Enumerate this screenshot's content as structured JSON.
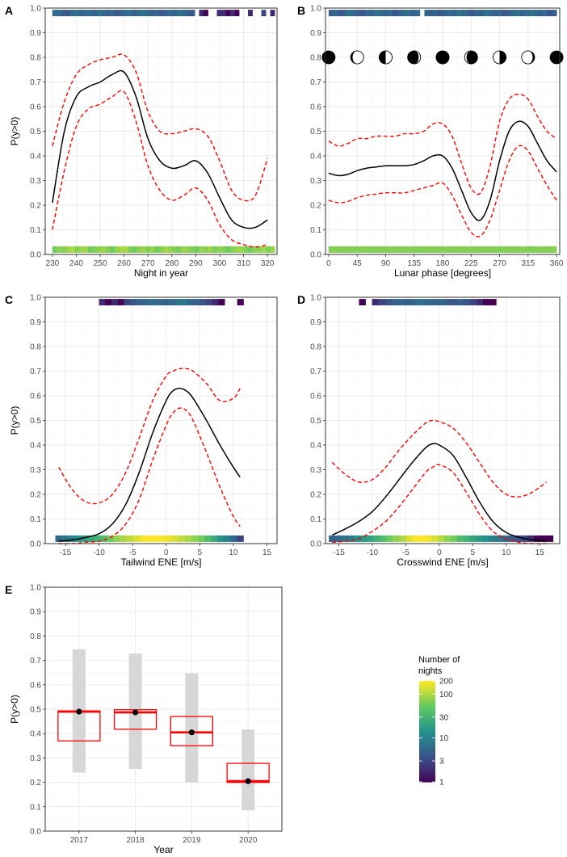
{
  "colors": {
    "mean": "#000000",
    "ci": "#ff0000",
    "grid_major": "#ebebeb",
    "grid_minor": "#f5f5f5",
    "panel_border": "#333333",
    "box_fill": "#d3d3d3",
    "viridis": [
      "#440154",
      "#3b528b",
      "#21918c",
      "#5ec962",
      "#fde725"
    ]
  },
  "legend": {
    "title_line1": "Number of",
    "title_line2": "nights",
    "labels": [
      "200",
      "100",
      "30",
      "10",
      "3",
      "1"
    ],
    "values": [
      200,
      100,
      30,
      10,
      3,
      1
    ]
  },
  "chart_data": [
    {
      "panel_label": "A",
      "type": "line",
      "xlabel": "Night in year",
      "ylabel": "P(y>0)",
      "xlim": [
        227,
        324
      ],
      "ylim": [
        0,
        1
      ],
      "xticks": [
        230,
        240,
        250,
        260,
        270,
        280,
        290,
        300,
        310,
        320
      ],
      "yticks": [
        0,
        0.1,
        0.2,
        0.3,
        0.4,
        0.5,
        0.6,
        0.7,
        0.8,
        0.9,
        1.0
      ],
      "ytick_labels": [
        "0.0",
        "0.1",
        "0.2",
        "0.3",
        "0.4",
        "0.5",
        "0.6",
        "0.7",
        "0.8",
        "0.9",
        "1.0"
      ],
      "x": [
        230,
        235,
        240,
        245,
        250,
        255,
        260,
        265,
        270,
        275,
        280,
        285,
        290,
        295,
        300,
        305,
        310,
        315,
        320
      ],
      "mean": [
        0.21,
        0.5,
        0.64,
        0.68,
        0.7,
        0.73,
        0.74,
        0.64,
        0.47,
        0.38,
        0.35,
        0.36,
        0.38,
        0.33,
        0.23,
        0.14,
        0.11,
        0.11,
        0.14
      ],
      "upper": [
        0.44,
        0.62,
        0.73,
        0.77,
        0.79,
        0.8,
        0.81,
        0.74,
        0.58,
        0.5,
        0.49,
        0.5,
        0.51,
        0.48,
        0.38,
        0.26,
        0.22,
        0.24,
        0.39
      ],
      "lower": [
        0.1,
        0.34,
        0.52,
        0.59,
        0.61,
        0.64,
        0.66,
        0.54,
        0.36,
        0.26,
        0.22,
        0.24,
        0.27,
        0.22,
        0.12,
        0.06,
        0.04,
        0.03,
        0.04
      ],
      "rug_top": {
        "x_start": 230,
        "x_end": 323,
        "counts": [
          6,
          6,
          5,
          4,
          6,
          7,
          5,
          6,
          6,
          5,
          7,
          6,
          5,
          6,
          4,
          5,
          6,
          7,
          5,
          6,
          7,
          6,
          5,
          6,
          4,
          5,
          6,
          5,
          7,
          6,
          5,
          4,
          0,
          2,
          1,
          0,
          0,
          2,
          2,
          1,
          2,
          1,
          0,
          0,
          2,
          0,
          0,
          3,
          0,
          2
        ]
      },
      "rug_bottom": {
        "x_start": 230,
        "x_end": 323,
        "counts": [
          60,
          80,
          70,
          90,
          100,
          75,
          85,
          95,
          60,
          70,
          80,
          90,
          70,
          60,
          85,
          95,
          100,
          70,
          60,
          80,
          90,
          70,
          85,
          60,
          75,
          95,
          80,
          70,
          65,
          90,
          80,
          70,
          60,
          85,
          75,
          90,
          65,
          80,
          70,
          60,
          75,
          85,
          90,
          70,
          60,
          80,
          75,
          90,
          70,
          85
        ]
      }
    },
    {
      "panel_label": "B",
      "type": "line",
      "xlabel": "Lunar phase [degrees]",
      "ylabel": "",
      "xlim": [
        -5,
        365
      ],
      "ylim": [
        0,
        1
      ],
      "xticks": [
        0,
        45,
        90,
        135,
        180,
        225,
        270,
        315,
        360
      ],
      "yticks": [
        0,
        0.1,
        0.2,
        0.3,
        0.4,
        0.5,
        0.6,
        0.7,
        0.8,
        0.9,
        1.0
      ],
      "ytick_labels": [
        "0.0",
        "0.1",
        "0.2",
        "0.3",
        "0.4",
        "0.5",
        "0.6",
        "0.7",
        "0.8",
        "0.9",
        "1.0"
      ],
      "x": [
        0,
        15,
        30,
        45,
        60,
        75,
        90,
        105,
        120,
        135,
        150,
        165,
        180,
        195,
        210,
        225,
        240,
        255,
        270,
        285,
        300,
        315,
        330,
        345,
        360
      ],
      "mean": [
        0.33,
        0.32,
        0.325,
        0.34,
        0.35,
        0.355,
        0.36,
        0.36,
        0.36,
        0.365,
        0.38,
        0.4,
        0.4,
        0.35,
        0.26,
        0.17,
        0.14,
        0.22,
        0.38,
        0.5,
        0.54,
        0.52,
        0.45,
        0.38,
        0.335
      ],
      "upper": [
        0.46,
        0.44,
        0.45,
        0.47,
        0.47,
        0.48,
        0.48,
        0.48,
        0.49,
        0.49,
        0.5,
        0.53,
        0.53,
        0.48,
        0.37,
        0.27,
        0.25,
        0.36,
        0.54,
        0.63,
        0.65,
        0.63,
        0.56,
        0.5,
        0.47
      ],
      "lower": [
        0.22,
        0.21,
        0.215,
        0.23,
        0.24,
        0.245,
        0.25,
        0.25,
        0.25,
        0.26,
        0.27,
        0.28,
        0.29,
        0.24,
        0.16,
        0.09,
        0.075,
        0.14,
        0.26,
        0.38,
        0.44,
        0.42,
        0.35,
        0.28,
        0.22
      ],
      "moon_phases_at": [
        0,
        45,
        90,
        135,
        180,
        225,
        270,
        315,
        360
      ],
      "moon_y": 0.8,
      "rug_top": {
        "x_start": 0,
        "x_end": 360,
        "counts": [
          5,
          6,
          4,
          5,
          7,
          6,
          5,
          4,
          6,
          5,
          7,
          6,
          5,
          6,
          4,
          5,
          6,
          7,
          5,
          6,
          0,
          6,
          5,
          6,
          4,
          5,
          6,
          5,
          7,
          6,
          5,
          4,
          6,
          5,
          7,
          6,
          5,
          6,
          4,
          5,
          6,
          7,
          5,
          6,
          7,
          6,
          5,
          6,
          4,
          5
        ]
      },
      "rug_bottom": {
        "x_start": 0,
        "x_end": 360,
        "counts": [
          70,
          75,
          70,
          72,
          74,
          70,
          73,
          75,
          71,
          70,
          72,
          74,
          70,
          73,
          75,
          71,
          70,
          72,
          74,
          70,
          73,
          75,
          71,
          70,
          72,
          74,
          70,
          73,
          75,
          71,
          70,
          72,
          74,
          70,
          73,
          75,
          71,
          70,
          72,
          74,
          70,
          73,
          75,
          71,
          70,
          72,
          74,
          70,
          73,
          75
        ]
      }
    },
    {
      "panel_label": "C",
      "type": "line",
      "xlabel": "Tailwind ENE [m/s]",
      "ylabel": "P(y>0)",
      "xlim": [
        -18,
        16.5
      ],
      "ylim": [
        0,
        1
      ],
      "xticks": [
        -15,
        -10,
        -5,
        0,
        5,
        10,
        15
      ],
      "yticks": [
        0,
        0.1,
        0.2,
        0.3,
        0.4,
        0.5,
        0.6,
        0.7,
        0.8,
        0.9,
        1.0
      ],
      "ytick_labels": [
        "0.0",
        "0.1",
        "0.2",
        "0.3",
        "0.4",
        "0.5",
        "0.6",
        "0.7",
        "0.8",
        "0.9",
        "1.0"
      ],
      "x": [
        -16,
        -14,
        -12,
        -10,
        -8,
        -6,
        -4,
        -2,
        0,
        1,
        2,
        3,
        4,
        6,
        8,
        10,
        11
      ],
      "mean": [
        0.01,
        0.015,
        0.025,
        0.04,
        0.08,
        0.16,
        0.29,
        0.45,
        0.58,
        0.62,
        0.63,
        0.62,
        0.59,
        0.5,
        0.4,
        0.31,
        0.27
      ],
      "upper": [
        0.31,
        0.22,
        0.17,
        0.165,
        0.2,
        0.29,
        0.43,
        0.58,
        0.68,
        0.7,
        0.71,
        0.71,
        0.7,
        0.65,
        0.58,
        0.59,
        0.63
      ],
      "lower": [
        0.0,
        0.0,
        0.005,
        0.01,
        0.03,
        0.08,
        0.18,
        0.34,
        0.48,
        0.53,
        0.55,
        0.54,
        0.5,
        0.37,
        0.23,
        0.11,
        0.07
      ],
      "rug_top": {
        "x_start": -10,
        "x_end": 11.5,
        "counts": [
          2,
          1,
          2,
          1,
          3,
          4,
          5,
          6,
          7,
          6,
          5,
          6,
          7,
          8,
          6,
          5,
          4,
          3,
          2,
          1,
          0,
          0,
          1
        ]
      },
      "rug_bottom": {
        "x_start": -16.5,
        "x_end": 11.5,
        "counts": [
          6,
          8,
          10,
          14,
          18,
          25,
          30,
          40,
          60,
          80,
          100,
          120,
          150,
          180,
          200,
          200,
          190,
          170,
          150,
          120,
          100,
          80,
          60,
          40,
          25,
          15,
          10,
          6,
          3
        ]
      }
    },
    {
      "panel_label": "D",
      "type": "line",
      "xlabel": "Crosswind ENE [m/s]",
      "ylabel": "",
      "xlim": [
        -17,
        18
      ],
      "ylim": [
        0,
        1
      ],
      "xticks": [
        -15,
        -10,
        -5,
        0,
        5,
        10,
        15
      ],
      "yticks": [
        0,
        0.1,
        0.2,
        0.3,
        0.4,
        0.5,
        0.6,
        0.7,
        0.8,
        0.9,
        1.0
      ],
      "ytick_labels": [
        "0.0",
        "0.1",
        "0.2",
        "0.3",
        "0.4",
        "0.5",
        "0.6",
        "0.7",
        "0.8",
        "0.9",
        "1.0"
      ],
      "x": [
        -16,
        -14,
        -12,
        -10,
        -8,
        -6,
        -4,
        -2,
        -1,
        0,
        2,
        4,
        6,
        8,
        10,
        12,
        14,
        16
      ],
      "mean": [
        0.035,
        0.06,
        0.09,
        0.13,
        0.19,
        0.26,
        0.33,
        0.39,
        0.405,
        0.4,
        0.36,
        0.27,
        0.17,
        0.09,
        0.045,
        0.025,
        0.015,
        0.01
      ],
      "upper": [
        0.33,
        0.28,
        0.25,
        0.26,
        0.31,
        0.38,
        0.44,
        0.49,
        0.5,
        0.495,
        0.47,
        0.41,
        0.33,
        0.25,
        0.2,
        0.19,
        0.21,
        0.25
      ],
      "lower": [
        0.005,
        0.01,
        0.02,
        0.05,
        0.09,
        0.15,
        0.22,
        0.29,
        0.31,
        0.32,
        0.29,
        0.21,
        0.12,
        0.05,
        0.02,
        0.005,
        0.0,
        0.0
      ],
      "rug_top": {
        "x_start": -12,
        "x_end": 8.5,
        "counts": [
          1,
          0,
          2,
          3,
          4,
          5,
          6,
          5,
          6,
          7,
          6,
          5,
          6,
          5,
          4,
          5,
          4,
          3,
          2,
          1,
          1
        ]
      },
      "rug_bottom": {
        "x_start": -16.5,
        "x_end": 17,
        "counts": [
          5,
          6,
          8,
          10,
          14,
          18,
          22,
          30,
          40,
          60,
          80,
          100,
          150,
          190,
          200,
          180,
          150,
          110,
          80,
          60,
          40,
          30,
          22,
          18,
          14,
          10,
          8,
          6,
          5,
          4,
          3,
          2,
          1,
          1,
          1
        ]
      }
    },
    {
      "panel_label": "E",
      "type": "box",
      "xlabel": "Year",
      "ylabel": "P(y>0)",
      "ylim": [
        0,
        1
      ],
      "categories": [
        "2017",
        "2018",
        "2019",
        "2020"
      ],
      "yticks": [
        0,
        0.1,
        0.2,
        0.3,
        0.4,
        0.5,
        0.6,
        0.7,
        0.8,
        0.9,
        1.0
      ],
      "ytick_labels": [
        "0.0",
        "0.1",
        "0.2",
        "0.3",
        "0.4",
        "0.5",
        "0.6",
        "0.7",
        "0.8",
        "0.9",
        "1.0"
      ],
      "points": [
        0.49,
        0.487,
        0.405,
        0.205
      ],
      "ci_lower": [
        0.24,
        0.255,
        0.2,
        0.085
      ],
      "ci_upper": [
        0.745,
        0.728,
        0.648,
        0.417
      ],
      "box_lower": [
        0.37,
        0.418,
        0.35,
        0.2
      ],
      "box_median": [
        0.49,
        0.487,
        0.405,
        0.205
      ],
      "box_upper": [
        0.493,
        0.498,
        0.47,
        0.278
      ]
    }
  ]
}
